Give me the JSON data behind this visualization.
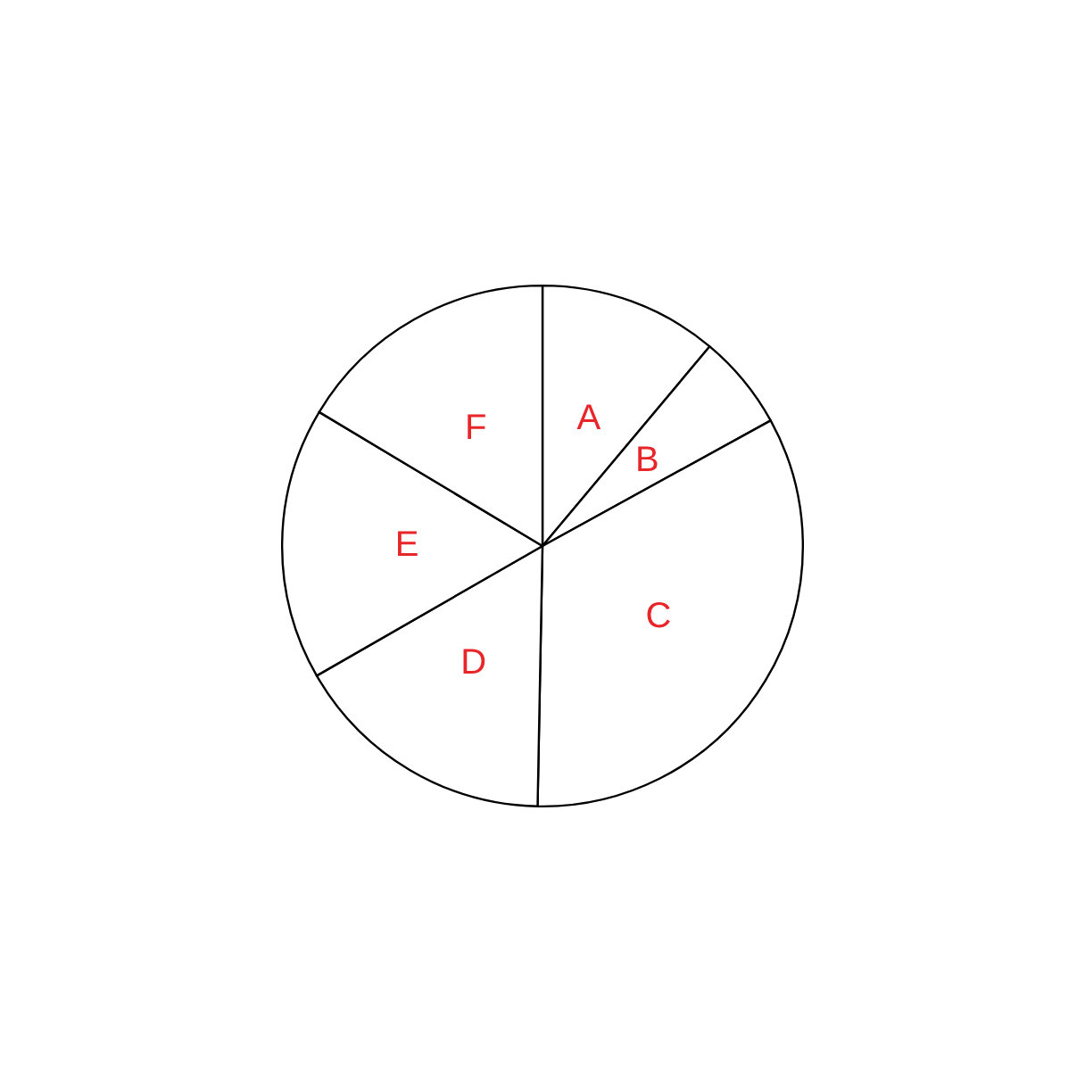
{
  "chart_data": {
    "type": "pie",
    "categories": [
      "A",
      "B",
      "C",
      "D",
      "E",
      "F"
    ],
    "values": [
      11.1,
      5.9,
      33.3,
      16.4,
      16.9,
      16.4
    ],
    "colors": [
      "#ffffff",
      "#ffffff",
      "#ffffff",
      "#ffffff",
      "#ffffff",
      "#ffffff"
    ],
    "legend": false
  }
}
